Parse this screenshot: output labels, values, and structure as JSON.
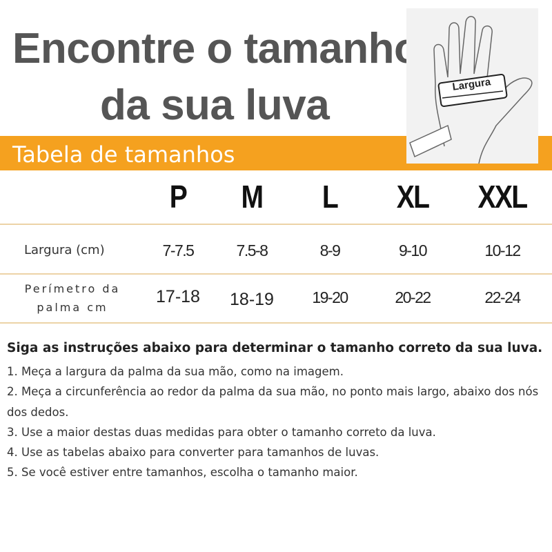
{
  "header": {
    "title_lines": [
      "Encontre o tamanho",
      "da sua luva"
    ],
    "band_title": "Tabela de tamanhos"
  },
  "image": {
    "label": "Largura"
  },
  "table": {
    "columns": [
      "P",
      "M",
      "L",
      "XL",
      "XXL"
    ],
    "rows": [
      {
        "label": [
          "Largura (cm)"
        ],
        "values": [
          "7-7.5",
          "7.5-8",
          "8-9",
          "9-10",
          "10-12"
        ]
      },
      {
        "label": [
          "Perímetro da",
          "palma cm"
        ],
        "values": [
          "17-18",
          "18-19",
          "19-20",
          "20-22",
          "22-24"
        ]
      }
    ]
  },
  "instructions": {
    "heading": "Siga as instruções abaixo para determinar o tamanho correto da sua luva.",
    "items": [
      "1. Meça a largura da palma da sua mão, como na imagem.",
      "2. Meça a circunferência ao redor da palma da sua mão, no ponto mais largo, abaixo dos nós dos dedos.",
      "3. Use a maior destas duas medidas para obter o tamanho correto da luva.",
      "4. Use as tabelas abaixo para converter para tamanhos de luvas.",
      "5. Se você estiver entre tamanhos, escolha o tamanho maior."
    ]
  }
}
